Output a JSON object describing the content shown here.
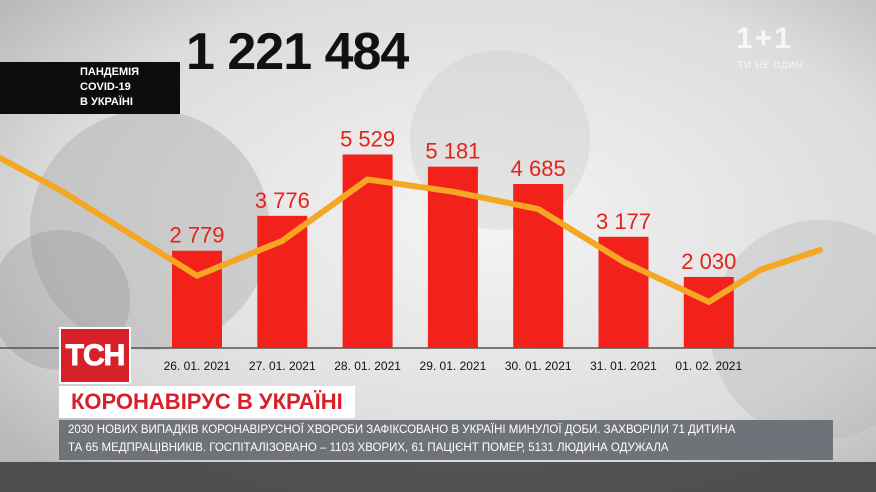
{
  "total_cases": "1 221 484",
  "badge": {
    "lines": [
      "ПАНДЕМІЯ",
      "COVID-19",
      "В УКРАЇНІ"
    ]
  },
  "channel": {
    "logo": "1+1",
    "tagline": "ТИ НЕ ОДИН"
  },
  "tsn_logo": "ТСН",
  "headline": "КОРОНАВІРУС В УКРАЇНІ",
  "ticker": {
    "line1": "2030 НОВИХ ВИПАДКІВ КОРОНАВІРУСНОЇ ХВОРОБИ  ЗАФІКСОВАНО В УКРАЇНІ МИНУЛОЇ ДОБИ. ЗАХВОРІЛИ 71 ДИТИНА",
    "line2": "ТА 65 МЕДПРАЦІВНИКІВ. ГОСПІТАЛІЗОВАНО – 1103 ХВОРИХ, 61 ПАЦІЄНТ ПОМЕР, 5131 ЛЮДИНА ОДУЖАЛА"
  },
  "colors": {
    "bar": "#f2221b",
    "line": "#f5a623",
    "label": "#e3241b",
    "accent": "#d8202a"
  },
  "chart_data": {
    "type": "bar",
    "categories": [
      "26. 01. 2021",
      "27. 01. 2021",
      "28. 01. 2021",
      "29. 01. 2021",
      "30. 01. 2021",
      "31. 01. 2021",
      "01. 02. 2021"
    ],
    "values": [
      2779,
      3776,
      5529,
      5181,
      4685,
      3177,
      2030
    ],
    "value_labels": [
      "2 779",
      "3 776",
      "5 529",
      "5 181",
      "4 685",
      "3 177",
      "2 030"
    ],
    "overlay": "trend line through bar tops",
    "ylim": [
      0,
      5800
    ],
    "grid": false,
    "legend": "none"
  }
}
